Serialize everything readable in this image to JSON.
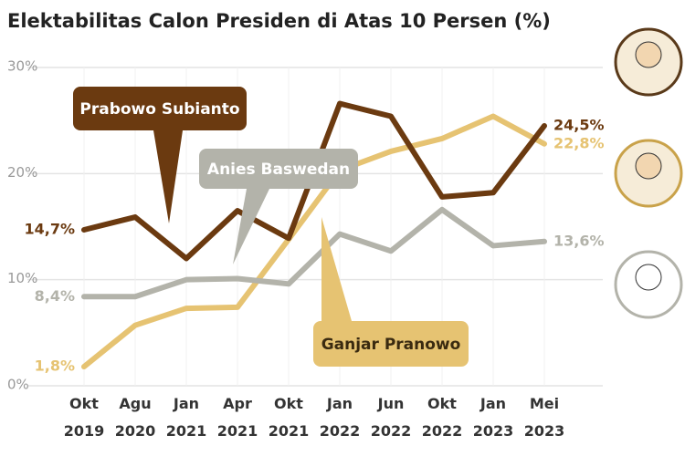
{
  "chart_data": {
    "type": "line",
    "title": "Elektabilitas Calon Presiden di Atas 10 Persen (%)",
    "categories": [
      "Okt 2019",
      "Agu 2020",
      "Jan 2021",
      "Apr 2021",
      "Okt 2021",
      "Jan 2022",
      "Jun 2022",
      "Okt 2022",
      "Jan 2023",
      "Mei 2023"
    ],
    "ylim": [
      0,
      30
    ],
    "yticks": [
      {
        "value": 0,
        "label": "0%"
      },
      {
        "value": 10,
        "label": "10%"
      },
      {
        "value": 20,
        "label": "20%"
      },
      {
        "value": 30,
        "label": "30%"
      }
    ],
    "grid": true,
    "series": [
      {
        "name": "Prabowo Subianto",
        "color": "#6b3a10",
        "values": [
          14.7,
          15.9,
          12.0,
          16.5,
          13.9,
          26.6,
          25.4,
          17.8,
          18.2,
          24.5
        ],
        "value_labels": [
          "14,7%",
          null,
          null,
          null,
          null,
          null,
          null,
          null,
          null,
          "24,5%"
        ]
      },
      {
        "name": "Anies Baswedan",
        "color": "#b3b3aa",
        "values": [
          8.4,
          8.4,
          10.0,
          10.1,
          9.6,
          14.3,
          12.7,
          16.6,
          13.2,
          13.6
        ],
        "value_labels": [
          "8,4%",
          null,
          null,
          null,
          null,
          null,
          null,
          null,
          null,
          "13,6%"
        ]
      },
      {
        "name": "Ganjar Pranowo",
        "color": "#e6c372",
        "values": [
          1.8,
          5.7,
          7.3,
          7.4,
          13.8,
          20.3,
          22.1,
          23.3,
          25.4,
          22.8
        ],
        "value_labels": [
          "1,8%",
          null,
          null,
          null,
          null,
          null,
          null,
          null,
          null,
          "22,8%"
        ]
      }
    ]
  }
}
